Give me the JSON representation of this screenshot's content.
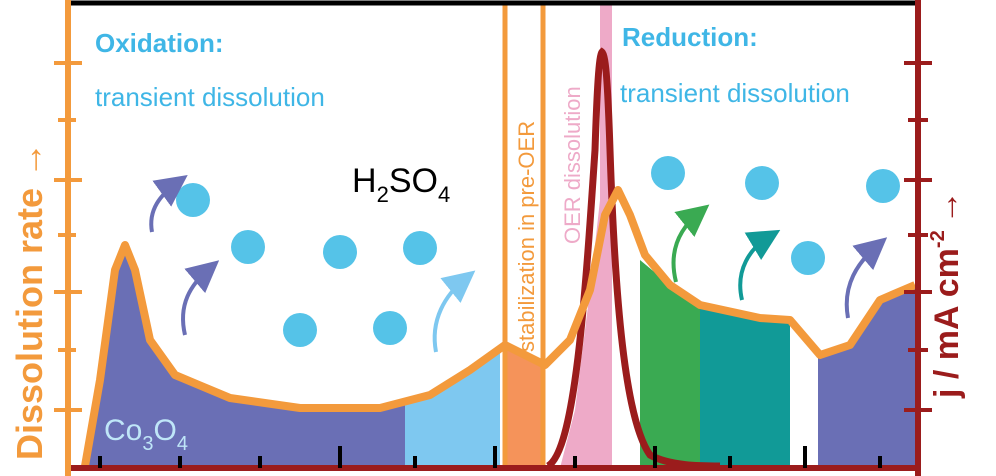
{
  "panels": {
    "oxidation": {
      "title": "Oxidation:",
      "subtitle": "transient dissolution"
    },
    "reduction": {
      "title": "Reduction:",
      "subtitle": "transient dissolution"
    }
  },
  "electrolyte": [
    "H",
    "2",
    "SO",
    "4"
  ],
  "material": [
    "Co",
    "3",
    "O",
    "4"
  ],
  "regions": [
    "stabilization in pre-OER",
    "OER dissolution"
  ],
  "axes": {
    "left": "Dissolution rate →",
    "right": [
      "j / mA cm",
      "-2",
      "→"
    ]
  }
}
